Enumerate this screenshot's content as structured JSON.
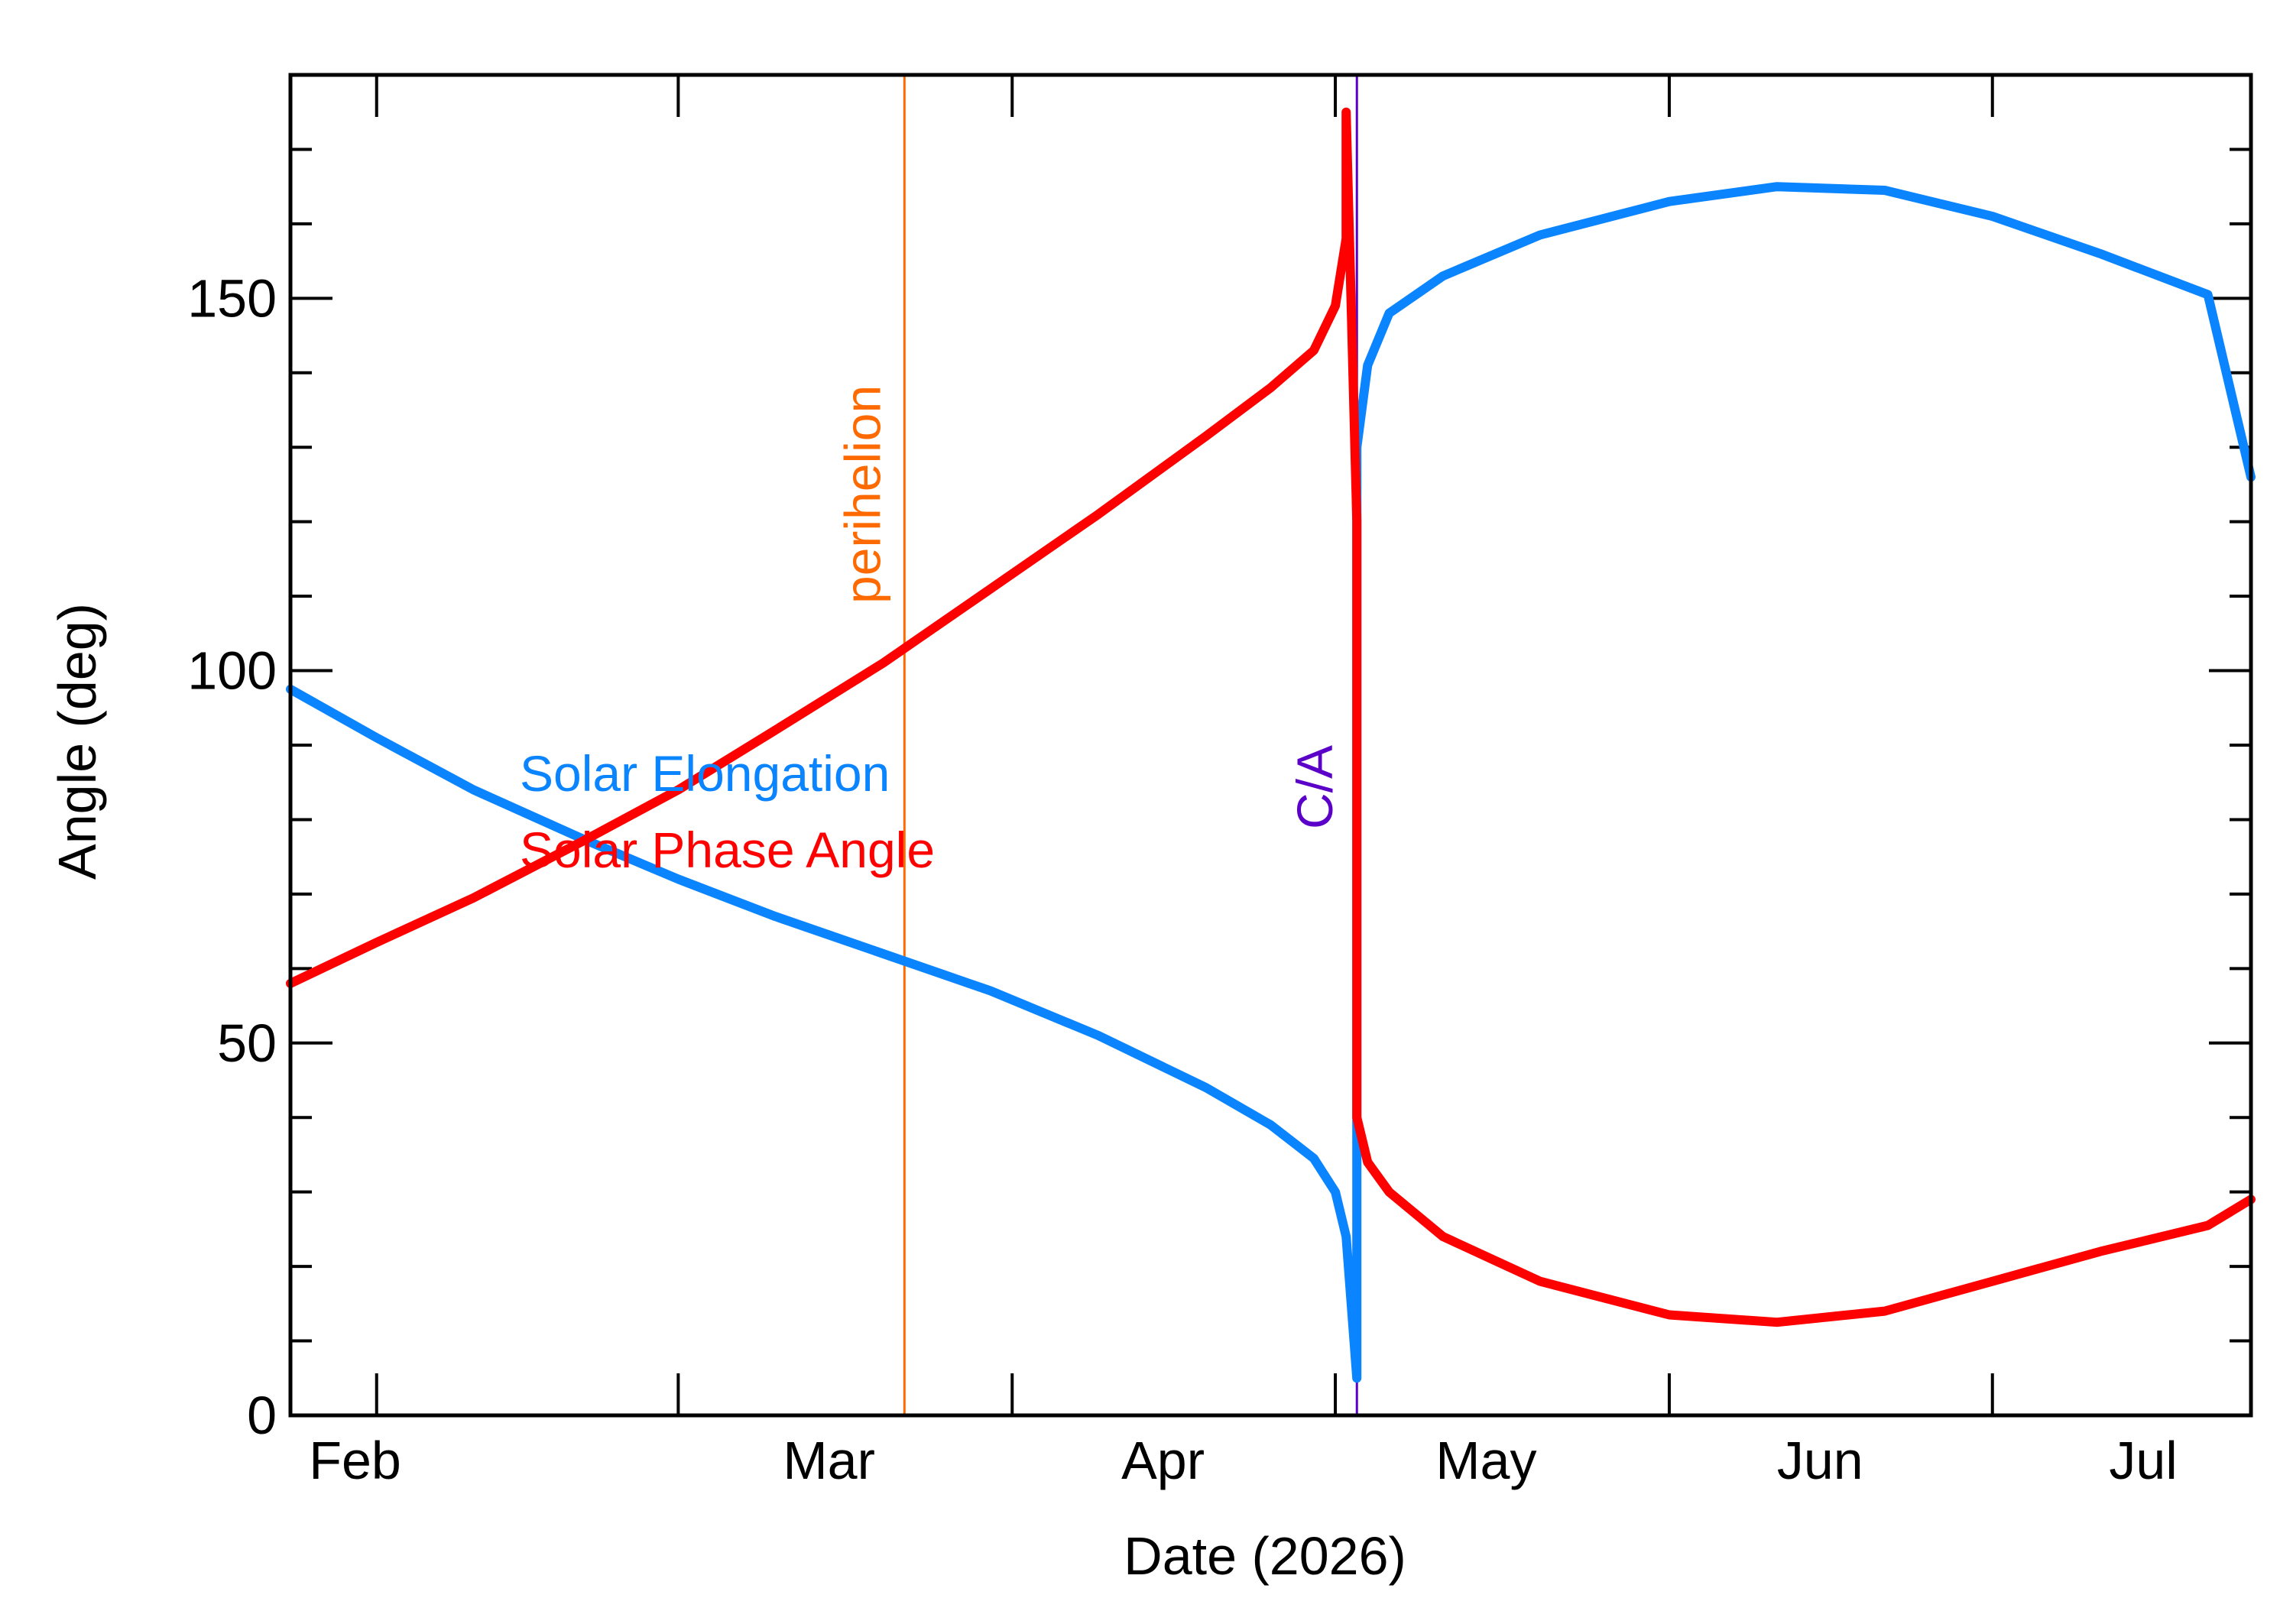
{
  "chart_data": {
    "type": "line",
    "xlabel": "Date (2026)",
    "ylabel": "Angle (deg)",
    "x_tick_labels": [
      "Feb",
      "Mar",
      "Apr",
      "May",
      "Jun",
      "Jul"
    ],
    "x_tick_dates": [
      "2026-02-01",
      "2026-03-01",
      "2026-04-01",
      "2026-05-01",
      "2026-06-01",
      "2026-07-01"
    ],
    "xlim": [
      "2026-01-24",
      "2026-07-25"
    ],
    "y_tick_labels": [
      "0",
      "50",
      "100",
      "150"
    ],
    "y_tick_values": [
      0,
      50,
      100,
      150
    ],
    "ylim": [
      0,
      180
    ],
    "y_minor_step": 10,
    "grid": false,
    "legend": {
      "position": "center-left",
      "entries": [
        "Solar Elongation",
        "Solar Phase Angle"
      ]
    },
    "series": [
      {
        "name": "Solar Elongation",
        "color": "#0a84ff",
        "points": [
          [
            "2026-01-24",
            97.5
          ],
          [
            "2026-02-01",
            91
          ],
          [
            "2026-02-10",
            84
          ],
          [
            "2026-02-20",
            77.5
          ],
          [
            "2026-03-01",
            72
          ],
          [
            "2026-03-10",
            67
          ],
          [
            "2026-03-20",
            62
          ],
          [
            "2026-03-30",
            57
          ],
          [
            "2026-04-09",
            51
          ],
          [
            "2026-04-19",
            44
          ],
          [
            "2026-04-25",
            39
          ],
          [
            "2026-04-29",
            34.5
          ],
          [
            "2026-05-01",
            30
          ],
          [
            "2026-05-02",
            24
          ],
          [
            "2026-05-03",
            5
          ],
          [
            "2026-05-03",
            70
          ],
          [
            "2026-05-03",
            130
          ],
          [
            "2026-05-04",
            141
          ],
          [
            "2026-05-06",
            148
          ],
          [
            "2026-05-11",
            153
          ],
          [
            "2026-05-20",
            158.5
          ],
          [
            "2026-06-01",
            163
          ],
          [
            "2026-06-11",
            165
          ],
          [
            "2026-06-21",
            164.5
          ],
          [
            "2026-07-01",
            161
          ],
          [
            "2026-07-11",
            156
          ],
          [
            "2026-07-21",
            150.5
          ],
          [
            "2026-07-25",
            126
          ]
        ]
      },
      {
        "name": "Solar Phase Angle",
        "color": "#ff0000",
        "points": [
          [
            "2026-01-24",
            58
          ],
          [
            "2026-02-01",
            63.5
          ],
          [
            "2026-02-10",
            69.5
          ],
          [
            "2026-02-20",
            77
          ],
          [
            "2026-03-01",
            84
          ],
          [
            "2026-03-10",
            92
          ],
          [
            "2026-03-20",
            101
          ],
          [
            "2026-03-30",
            111
          ],
          [
            "2026-04-09",
            121
          ],
          [
            "2026-04-19",
            131.5
          ],
          [
            "2026-04-25",
            138
          ],
          [
            "2026-04-29",
            143
          ],
          [
            "2026-05-01",
            149
          ],
          [
            "2026-05-02",
            158
          ],
          [
            "2026-05-02",
            175
          ],
          [
            "2026-05-03",
            120
          ],
          [
            "2026-05-03",
            40
          ],
          [
            "2026-05-04",
            34
          ],
          [
            "2026-05-06",
            30
          ],
          [
            "2026-05-11",
            24
          ],
          [
            "2026-05-20",
            18
          ],
          [
            "2026-06-01",
            13.5
          ],
          [
            "2026-06-11",
            12.5
          ],
          [
            "2026-06-21",
            14
          ],
          [
            "2026-07-01",
            18
          ],
          [
            "2026-07-11",
            22
          ],
          [
            "2026-07-21",
            25.5
          ],
          [
            "2026-07-25",
            29
          ]
        ]
      }
    ],
    "annotations": [
      {
        "label": "perihelion",
        "date": "2026-03-22",
        "color": "#ff6a00"
      },
      {
        "label": "C/A",
        "date": "2026-05-03",
        "color": "#5b00c8"
      }
    ]
  }
}
